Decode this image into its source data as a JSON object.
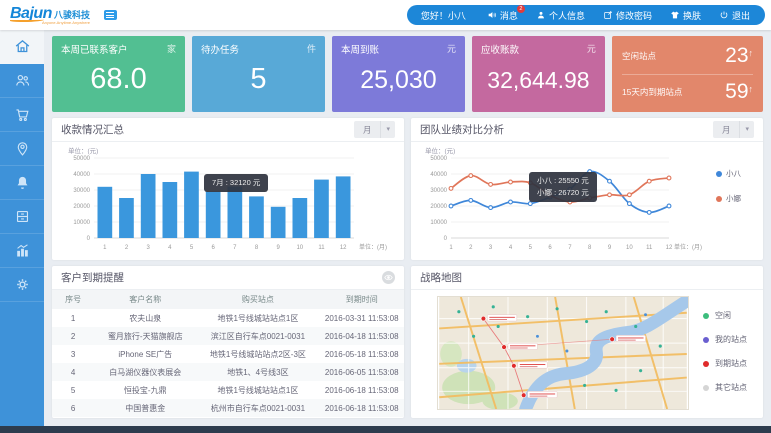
{
  "header": {
    "logo_text": "Bajun",
    "logo_cn": "八骏科技",
    "logo_tagline": "Anyone.Anytime.Anywhere",
    "greeting": "您好！小八",
    "menu": [
      {
        "label": "消息",
        "icon": "speaker-icon",
        "badge": "2"
      },
      {
        "label": "个人信息",
        "icon": "person-icon",
        "badge": ""
      },
      {
        "label": "修改密码",
        "icon": "edit-icon",
        "badge": ""
      },
      {
        "label": "换肤",
        "icon": "shirt-icon",
        "badge": ""
      },
      {
        "label": "退出",
        "icon": "power-icon",
        "badge": ""
      }
    ]
  },
  "stat_cards": [
    {
      "title": "本周已联系客户",
      "unit": "家",
      "value": "68.0",
      "color": "#52bf92"
    },
    {
      "title": "待办任务",
      "unit": "件",
      "value": "5",
      "color": "#58a9d7"
    },
    {
      "title": "本周到账",
      "unit": "元",
      "value": "25,030",
      "color": "#7d7ad9"
    },
    {
      "title": "应收账款",
      "unit": "元",
      "value": "32,644.98",
      "color": "#c4699f"
    }
  ],
  "site_card": {
    "color": "#e2876b",
    "rows": [
      {
        "label": "空闲站点",
        "value": "23",
        "arrow": "↑"
      },
      {
        "label": "15天内到期站点",
        "value": "59",
        "arrow": "↑"
      }
    ]
  },
  "panels": {
    "bar_panel": {
      "title": "收款情况汇总",
      "filter": "月",
      "caret": "▾"
    },
    "line_panel": {
      "title": "团队业绩对比分析",
      "filter": "月",
      "caret": "▾"
    },
    "table_panel": {
      "title": "客户到期提醒"
    },
    "map_panel": {
      "title": "战略地图"
    }
  },
  "chart_data": [
    {
      "type": "bar",
      "title": "收款情况汇总",
      "categories": [
        "1",
        "2",
        "3",
        "4",
        "5",
        "6",
        "7",
        "8",
        "9",
        "10",
        "11",
        "12"
      ],
      "values": [
        32000,
        25000,
        40000,
        35000,
        41500,
        29000,
        32120,
        26000,
        19500,
        25000,
        36500,
        38500
      ],
      "ylabel": "单位：(元)",
      "xlabel": "单位：(月)",
      "ylim": [
        0,
        50000
      ],
      "yticks": [
        0,
        10000,
        20000,
        30000,
        40000,
        50000
      ],
      "bar_color": "#3a97dd",
      "grid": true,
      "tooltip": {
        "month": "7",
        "text": "7月 : 32120 元"
      }
    },
    {
      "type": "line",
      "title": "团队业绩对比分析",
      "x": [
        "1",
        "2",
        "3",
        "4",
        "5",
        "6",
        "7",
        "8",
        "9",
        "10",
        "11",
        "12"
      ],
      "series": [
        {
          "name": "小八",
          "color": "#3f87d9",
          "values": [
            20000,
            23500,
            19000,
            22500,
            21500,
            25550,
            30500,
            41500,
            35500,
            21500,
            16000,
            20000
          ]
        },
        {
          "name": "小娜",
          "color": "#e0765a",
          "values": [
            31000,
            39000,
            33500,
            35000,
            34500,
            26720,
            22500,
            25000,
            27000,
            27000,
            35500,
            37500
          ]
        }
      ],
      "ylabel": "单位：(元)",
      "xlabel": "单位：(月)",
      "ylim": [
        0,
        50000
      ],
      "yticks": [
        0,
        10000,
        20000,
        30000,
        40000,
        50000
      ],
      "legend_position": "right",
      "grid": true,
      "tooltip": {
        "lines": [
          "小八 : 25550 元",
          "小娜 : 26720 元"
        ]
      }
    }
  ],
  "table": {
    "headers": [
      "序号",
      "客户名称",
      "购买站点",
      "到期时间"
    ],
    "rows": [
      [
        "1",
        "农夫山泉",
        "地铁1号线城站站点1区",
        "2016-03-31 11:53:08"
      ],
      [
        "2",
        "蜜月旅行-天猫旗舰店",
        "滨江区自行车点0021-0031",
        "2016-04-18 11:53:08"
      ],
      [
        "3",
        "iPhone SE广告",
        "地铁1号线城站站点2区-3区",
        "2016-05-18 11:53:08"
      ],
      [
        "4",
        "白马湖仪器仪表展会",
        "地铁1、4号线3区",
        "2016-06-05 11:53:08"
      ],
      [
        "5",
        "恒投宝-九鼎",
        "地铁1号线城站站点1区",
        "2016-06-18 11:53:08"
      ],
      [
        "6",
        "中国普惠金",
        "杭州市自行车点0021-0031",
        "2016-06-18 11:53:08"
      ]
    ]
  },
  "map_legend": [
    {
      "label": "空闲",
      "color": "#3dbd7d"
    },
    {
      "label": "我的站点",
      "color": "#6a5fd0"
    },
    {
      "label": "到期站点",
      "color": "#e02b2b"
    },
    {
      "label": "其它站点",
      "color": "#d5d5d5"
    }
  ],
  "map_markers": [
    {
      "x": 45,
      "y": 22
    },
    {
      "x": 66,
      "y": 51
    },
    {
      "x": 76,
      "y": 70
    },
    {
      "x": 86,
      "y": 100
    },
    {
      "x": 176,
      "y": 43
    }
  ]
}
